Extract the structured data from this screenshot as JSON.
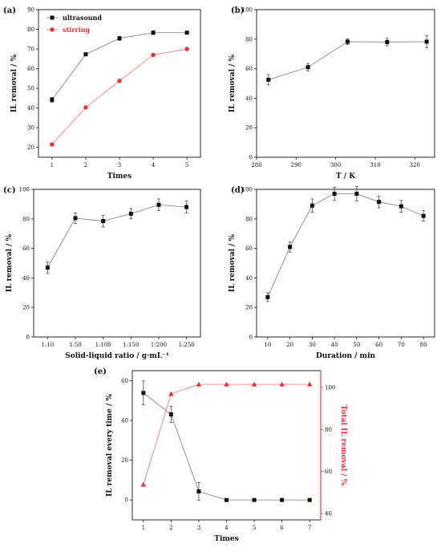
{
  "chart_data": [
    {
      "id": "a",
      "panel_label": "(a)",
      "type": "line",
      "xlabel": "Times",
      "ylabel": "IL removal / %",
      "xlim": [
        0.6,
        5.4
      ],
      "ylim": [
        15,
        90
      ],
      "xticks": [
        1,
        2,
        3,
        4,
        5
      ],
      "xtick_labels": [
        "1",
        "2",
        "3",
        "4",
        "5"
      ],
      "yticks": [
        20,
        30,
        40,
        50,
        60,
        70,
        80,
        90
      ],
      "legend": "top-left",
      "series": [
        {
          "name": "ultrasound",
          "color": "#555555",
          "marker": "square",
          "x": [
            1,
            2,
            3,
            4,
            5
          ],
          "y": [
            44.2,
            67.3,
            75.4,
            78.3,
            78.3
          ],
          "err": [
            1.2,
            0.8,
            1.0,
            1.0,
            0.5
          ]
        },
        {
          "name": "stirring",
          "color": "#e8313a",
          "marker": "circle",
          "x": [
            1,
            2,
            3,
            4,
            5
          ],
          "y": [
            21.5,
            40.3,
            53.8,
            67.0,
            70.0
          ],
          "err": [
            0,
            0,
            0,
            0,
            0
          ]
        }
      ]
    },
    {
      "id": "b",
      "panel_label": "(b)",
      "type": "line",
      "xlabel": "T / K",
      "ylabel": "IL removal / %",
      "xlim": [
        280,
        325
      ],
      "ylim": [
        0,
        100
      ],
      "xticks": [
        280,
        290,
        300,
        310,
        320
      ],
      "xtick_labels": [
        "280",
        "290",
        "300",
        "310",
        "320"
      ],
      "yticks": [
        0,
        20,
        40,
        60,
        80,
        100
      ],
      "series": [
        {
          "name": "",
          "color": "#555555",
          "marker": "square",
          "x": [
            283,
            293,
            303,
            313,
            323
          ],
          "y": [
            52.5,
            61.0,
            78.3,
            78.0,
            78.3
          ],
          "err": [
            3.5,
            2.5,
            2.0,
            2.5,
            4.0
          ]
        }
      ]
    },
    {
      "id": "c",
      "panel_label": "(c)",
      "type": "line",
      "xlabel": "Solid-liquid ratio / g·mL⁻¹",
      "ylabel": "IL removal / %",
      "xlim": [
        0.5,
        6.5
      ],
      "ylim": [
        0,
        100
      ],
      "xticks": [
        1,
        2,
        3,
        4,
        5,
        6
      ],
      "xtick_labels": [
        "1:10",
        "1:50",
        "1:100",
        "1:150",
        "1:200",
        "1:250"
      ],
      "yticks": [
        0,
        20,
        40,
        60,
        80,
        100
      ],
      "series": [
        {
          "name": "",
          "color": "#555555",
          "marker": "square",
          "x": [
            1,
            2,
            3,
            4,
            5,
            6
          ],
          "y": [
            47.0,
            80.5,
            78.5,
            83.5,
            89.5,
            88.0
          ],
          "err": [
            4.0,
            3.5,
            4.0,
            3.5,
            4.0,
            4.0
          ]
        }
      ]
    },
    {
      "id": "d",
      "panel_label": "(d)",
      "type": "line",
      "xlabel": "Duration / min",
      "ylabel": "IL removal / %",
      "xlim": [
        5,
        85
      ],
      "ylim": [
        0,
        100
      ],
      "xticks": [
        10,
        20,
        30,
        40,
        50,
        60,
        70,
        80
      ],
      "xtick_labels": [
        "10",
        "20",
        "30",
        "40",
        "50",
        "60",
        "70",
        "80"
      ],
      "yticks": [
        0,
        20,
        40,
        60,
        80,
        100
      ],
      "series": [
        {
          "name": "",
          "color": "#555555",
          "marker": "square",
          "x": [
            10,
            20,
            30,
            40,
            50,
            60,
            70,
            80
          ],
          "y": [
            27.0,
            61.0,
            89.0,
            97.0,
            97.0,
            91.5,
            88.5,
            82.0
          ],
          "err": [
            3.0,
            3.5,
            4.5,
            4.5,
            5.0,
            4.0,
            4.0,
            3.5
          ]
        }
      ]
    },
    {
      "id": "e",
      "panel_label": "(e)",
      "type": "line",
      "xlabel": "Times",
      "ylabel": "IL removal every time / %",
      "y2label": "Total  IL  removal / %",
      "xlim": [
        0.6,
        7.4
      ],
      "ylim": [
        -10,
        65
      ],
      "y2lim": [
        37,
        108
      ],
      "xticks": [
        1,
        2,
        3,
        4,
        5,
        6,
        7
      ],
      "xtick_labels": [
        "1",
        "2",
        "3",
        "4",
        "5",
        "6",
        "7"
      ],
      "yticks": [
        0,
        20,
        40,
        60
      ],
      "y2ticks": [
        40,
        60,
        80,
        100
      ],
      "series": [
        {
          "name": "",
          "axis": "left",
          "color": "#555555",
          "marker": "square",
          "x": [
            1,
            2,
            3,
            4,
            5,
            6,
            7
          ],
          "y": [
            53.8,
            43.0,
            4.3,
            0,
            0,
            0,
            0
          ],
          "err": [
            6.0,
            4.0,
            4.5,
            0,
            0,
            0,
            0
          ]
        },
        {
          "name": "",
          "axis": "right",
          "color": "#e8313a",
          "marker": "triangle",
          "x": [
            1,
            2,
            3,
            4,
            5,
            6,
            7
          ],
          "y": [
            53.8,
            97.0,
            101.5,
            101.5,
            101.5,
            101.5,
            101.5
          ],
          "err": [
            0,
            0,
            0,
            0,
            0,
            0,
            0
          ]
        }
      ]
    }
  ]
}
